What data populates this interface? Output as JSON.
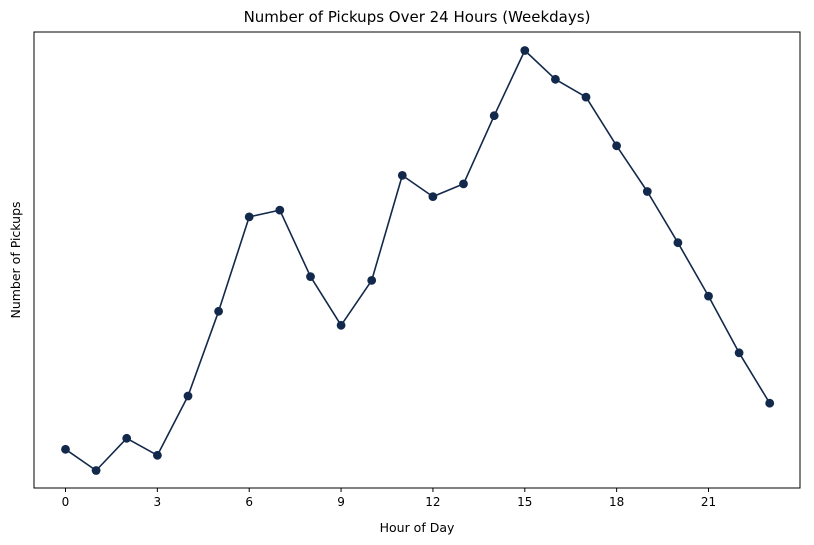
{
  "chart_data": {
    "type": "line",
    "title": "Number of Pickups Over 24 Hours (Weekdays)",
    "xlabel": "Hour of Day",
    "ylabel": "Number of Pickups",
    "x_ticks": [
      0,
      3,
      6,
      9,
      12,
      15,
      18,
      21
    ],
    "y_ticks": [],
    "y_tick_labels_shown": false,
    "grid": false,
    "legend": "none",
    "xlim": [
      -1.0,
      24.0
    ],
    "ylim": [
      0,
      100
    ],
    "series": [
      {
        "color": "#13294b",
        "marker": "circle",
        "x": [
          0,
          1,
          2,
          3,
          4,
          5,
          6,
          7,
          8,
          9,
          10,
          11,
          12,
          13,
          14,
          15,
          16,
          17,
          18,
          19,
          20,
          21,
          22,
          23
        ],
        "y": [
          9.6,
          4.6,
          12.2,
          8.2,
          22.2,
          42.2,
          64.5,
          66.1,
          50.4,
          38.9,
          49.5,
          74.3,
          69.3,
          72.3,
          88.4,
          103.8,
          97.0,
          92.8,
          81.3,
          70.5,
          58.4,
          45.8,
          32.4,
          20.5
        ]
      }
    ]
  }
}
